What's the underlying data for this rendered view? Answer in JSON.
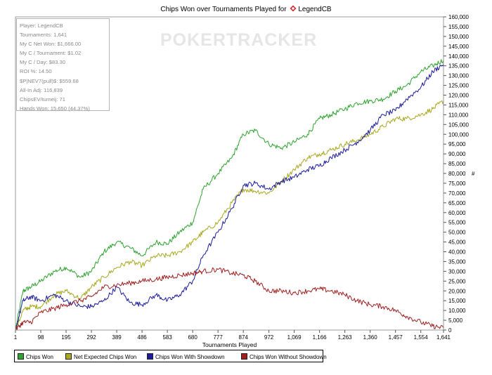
{
  "chart_data": {
    "type": "line",
    "title": "Chips Won over Tournaments Played for",
    "title_player": "LegendCB",
    "xlabel": "Tournaments Played",
    "ylabel": "#",
    "xlim": [
      1,
      1641
    ],
    "ylim": [
      0,
      160000
    ],
    "x_ticks": [
      "1",
      "98",
      "195",
      "292",
      "389",
      "486",
      "583",
      "680",
      "777",
      "874",
      "972",
      "1,069",
      "1,166",
      "1,263",
      "1,360",
      "1,457",
      "1,554",
      "1,641"
    ],
    "y_ticks": [
      "0",
      "5,000",
      "10,000",
      "15,000",
      "20,000",
      "25,000",
      "30,000",
      "35,000",
      "40,000",
      "45,000",
      "50,000",
      "55,000",
      "60,000",
      "65,000",
      "70,000",
      "75,000",
      "80,000",
      "85,000",
      "90,000",
      "95,000",
      "100,000",
      "105,000",
      "110,000",
      "115,000",
      "120,000",
      "125,000",
      "130,000",
      "135,000",
      "140,000",
      "145,000",
      "150,000",
      "155,000",
      "160,000"
    ],
    "legend_position": "bottom-left",
    "watermark": "POKERTRACKER",
    "stats": [
      "Player: LegendCB",
      "Tournaments: 1,641",
      "My C Net Won: $1,666.00",
      "My C / Tournament: $1.02",
      "My C / Day: $83.30",
      "ROI %: 14.50",
      "$P|NEV7(pull)$: $559.68",
      "All-In Adj: 116,839",
      "ChipsEV/turneij: 71",
      "Hands Won: 15,650 (44.37%)"
    ],
    "series": [
      {
        "name": "Chips Won",
        "color": "#2ea32e",
        "x": [
          1,
          30,
          60,
          98,
          150,
          195,
          250,
          292,
          340,
          389,
          440,
          486,
          540,
          583,
          630,
          680,
          720,
          777,
          830,
          874,
          920,
          972,
          1020,
          1069,
          1120,
          1166,
          1210,
          1263,
          1310,
          1360,
          1410,
          1457,
          1500,
          1554,
          1600,
          1641
        ],
        "y": [
          0,
          20000,
          22000,
          25000,
          30000,
          32000,
          27000,
          30000,
          40000,
          45000,
          42000,
          38000,
          45000,
          44000,
          50000,
          55000,
          72000,
          80000,
          88000,
          100000,
          102000,
          95000,
          93000,
          96000,
          100000,
          108000,
          110000,
          113000,
          116000,
          117000,
          118000,
          122000,
          125000,
          132000,
          135000,
          138000
        ]
      },
      {
        "name": "Net Expected Chips Won",
        "color": "#a8a822",
        "x": [
          1,
          30,
          60,
          98,
          150,
          195,
          250,
          292,
          340,
          389,
          440,
          486,
          540,
          583,
          630,
          680,
          720,
          777,
          830,
          874,
          920,
          972,
          1020,
          1069,
          1120,
          1166,
          1210,
          1263,
          1310,
          1360,
          1410,
          1457,
          1500,
          1554,
          1600,
          1641
        ],
        "y": [
          0,
          10000,
          12000,
          12000,
          18000,
          20000,
          16000,
          22000,
          27000,
          32000,
          35000,
          33000,
          38000,
          38000,
          40000,
          45000,
          50000,
          55000,
          65000,
          72000,
          71000,
          70000,
          76000,
          82000,
          88000,
          90000,
          92000,
          95000,
          97000,
          100000,
          104000,
          108000,
          108000,
          110000,
          113000,
          117000
        ]
      },
      {
        "name": "Chips Won With Showdown",
        "color": "#1c1c9c",
        "x": [
          1,
          30,
          60,
          98,
          150,
          195,
          250,
          292,
          340,
          389,
          440,
          486,
          540,
          583,
          630,
          680,
          720,
          777,
          830,
          874,
          920,
          972,
          1020,
          1069,
          1120,
          1166,
          1210,
          1263,
          1310,
          1360,
          1410,
          1457,
          1500,
          1554,
          1600,
          1641
        ],
        "y": [
          0,
          15000,
          17000,
          15000,
          18000,
          15000,
          12000,
          12000,
          15000,
          22000,
          14000,
          13000,
          18000,
          15000,
          18000,
          25000,
          38000,
          50000,
          62000,
          74000,
          75000,
          72000,
          76000,
          78000,
          82000,
          84000,
          88000,
          92000,
          96000,
          102000,
          110000,
          112000,
          118000,
          124000,
          132000,
          136000
        ]
      },
      {
        "name": "Chips Won Without Showdown",
        "color": "#a02020",
        "x": [
          1,
          30,
          60,
          98,
          150,
          195,
          250,
          292,
          340,
          389,
          440,
          486,
          540,
          583,
          630,
          680,
          720,
          777,
          830,
          874,
          920,
          972,
          1020,
          1069,
          1120,
          1166,
          1210,
          1263,
          1310,
          1360,
          1410,
          1457,
          1500,
          1554,
          1600,
          1641
        ],
        "y": [
          0,
          4000,
          4000,
          9000,
          11000,
          13000,
          15000,
          17000,
          22000,
          23000,
          24000,
          25000,
          26000,
          27000,
          28000,
          29000,
          30000,
          31000,
          29000,
          28000,
          25000,
          20000,
          20000,
          19000,
          20000,
          21000,
          20000,
          18000,
          15000,
          13000,
          12000,
          10000,
          7000,
          4000,
          2000,
          1000
        ]
      }
    ]
  }
}
